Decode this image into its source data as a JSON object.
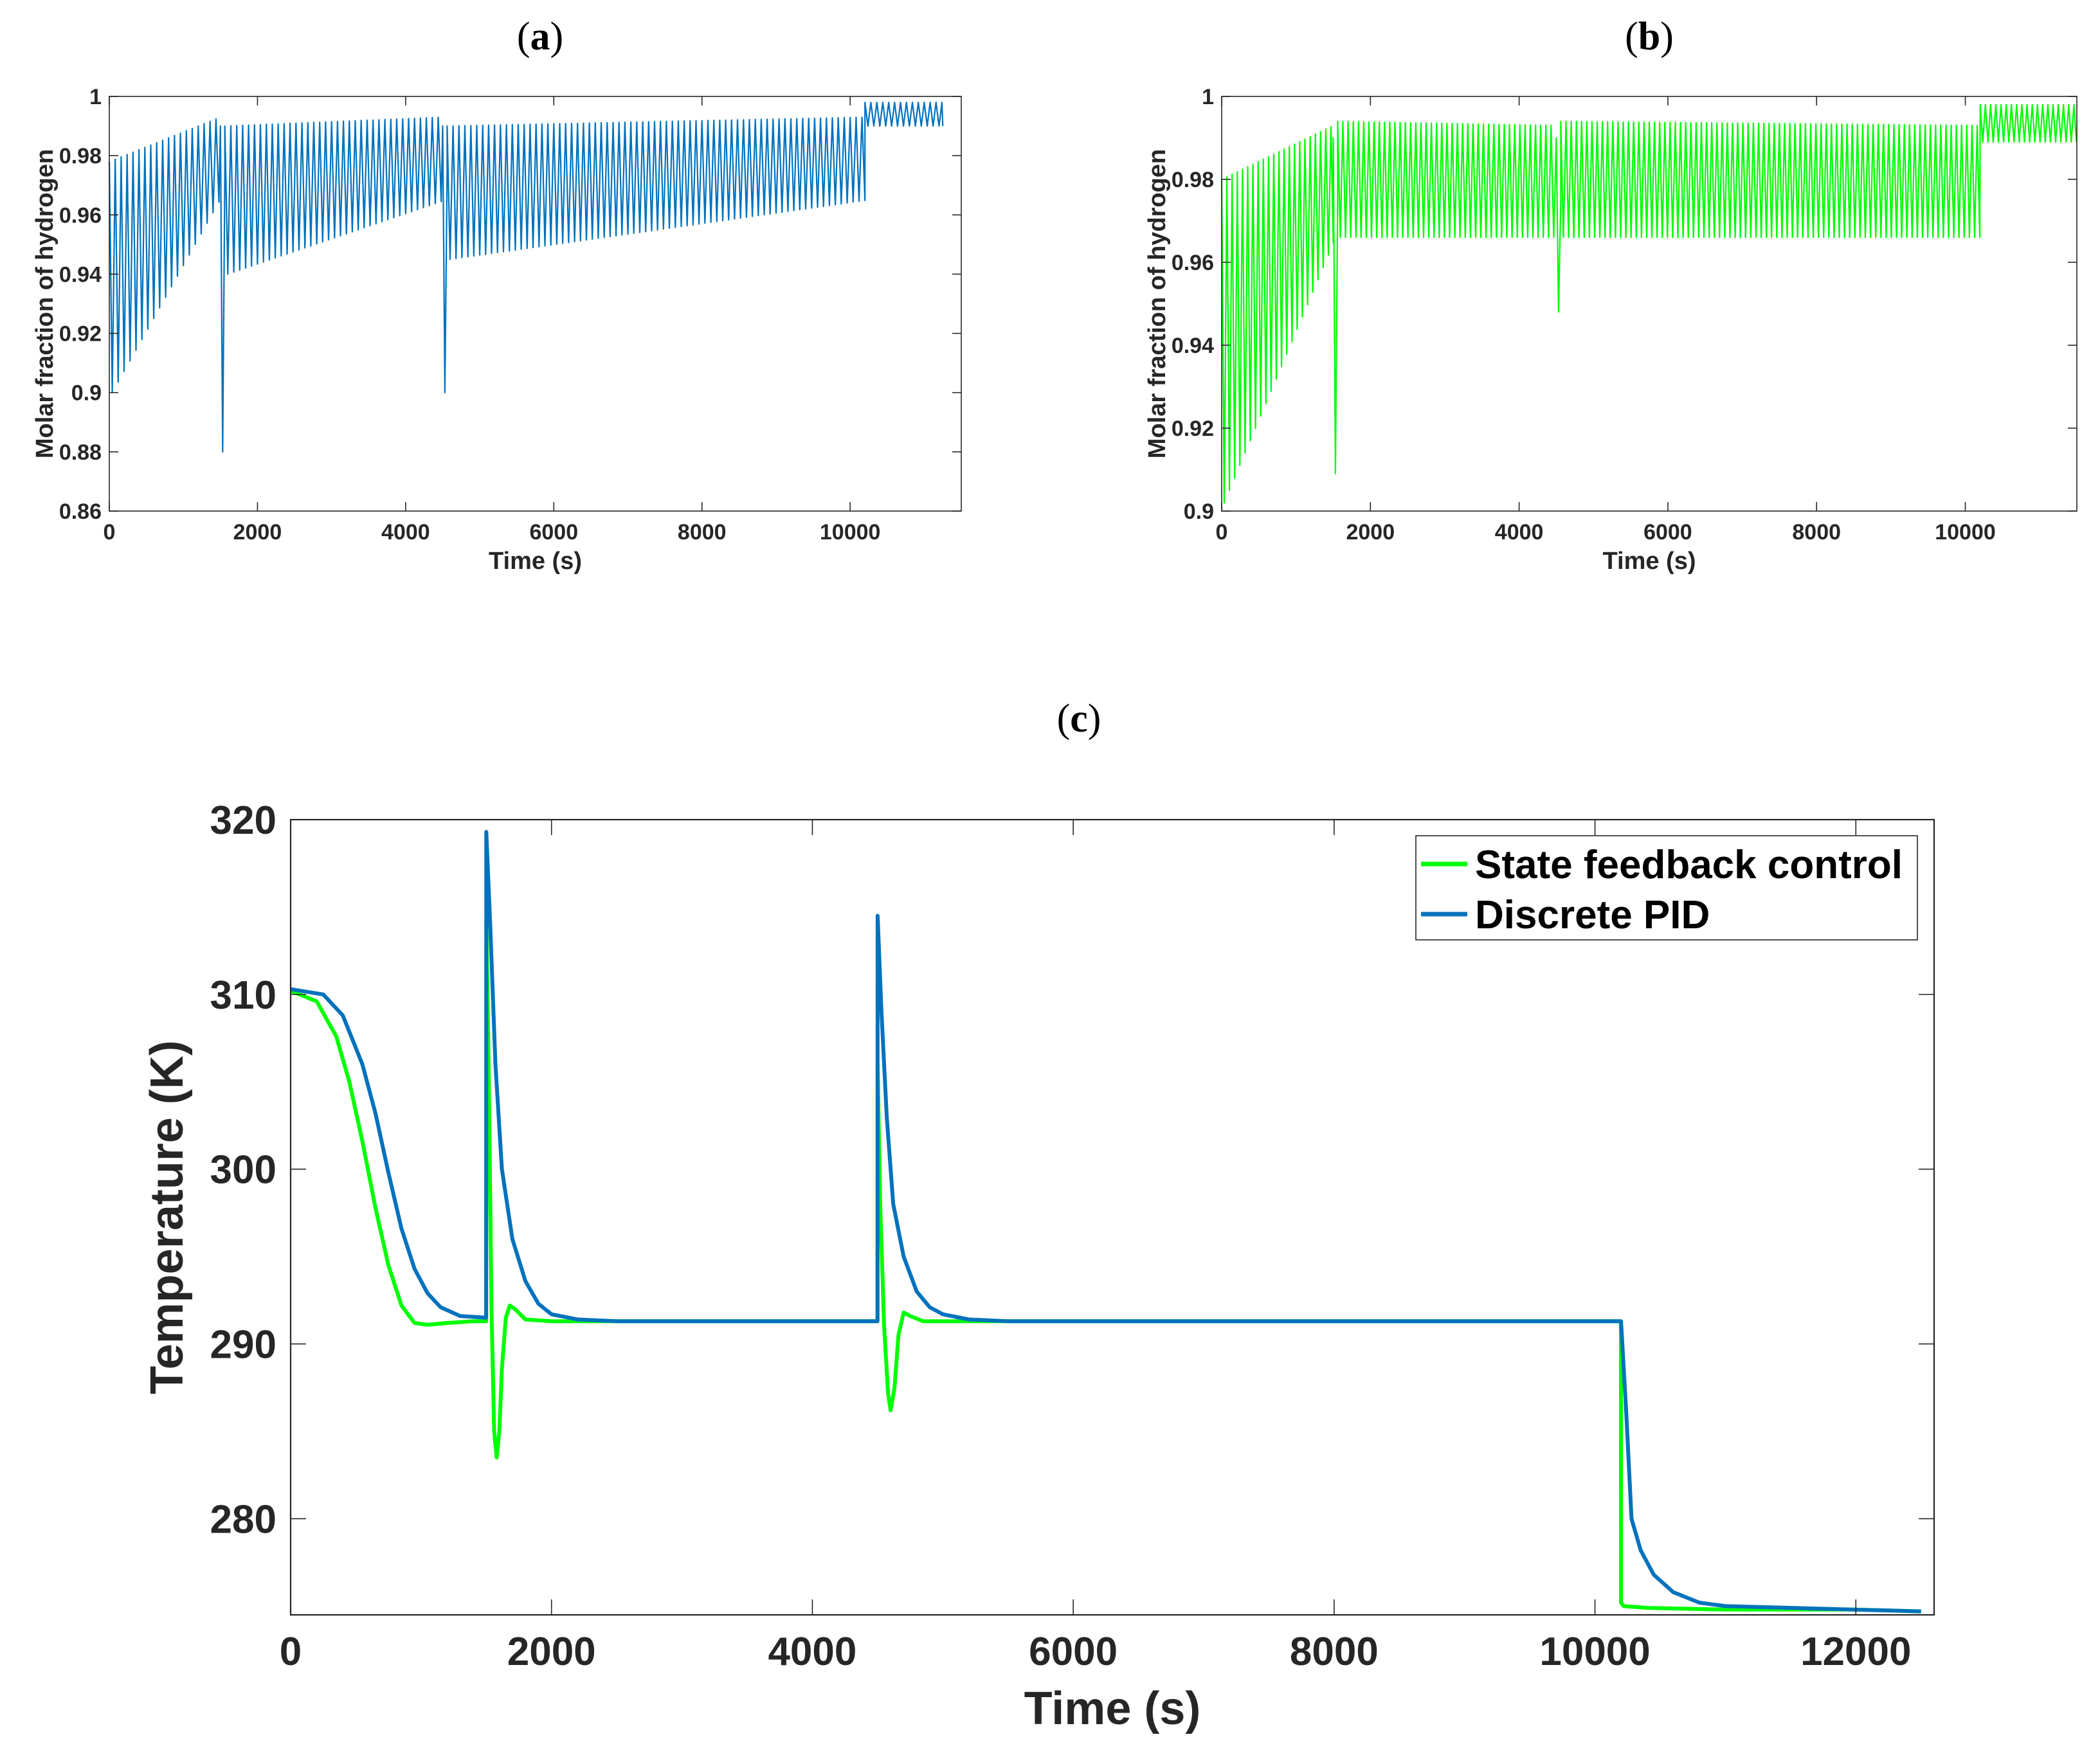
{
  "panel_labels": [
    "a",
    "b",
    "c"
  ],
  "colors": {
    "blue": "#0072BD",
    "green": "#00FF00",
    "axis": "#262626",
    "frame": "#7f7f7f"
  },
  "chart_data": [
    {
      "id": "a",
      "type": "line",
      "title": "(a)",
      "xlabel": "Time (s)",
      "ylabel": "Molar fraction of hydrogen",
      "xlim": [
        0,
        11500
      ],
      "ylim": [
        0.86,
        1.0
      ],
      "xticks": [
        0,
        2000,
        4000,
        6000,
        8000,
        10000
      ],
      "yticks": [
        0.86,
        0.88,
        0.9,
        0.92,
        0.94,
        0.96,
        0.98,
        1.0
      ],
      "xtick_labels": [
        "0",
        "2000",
        "4000",
        "6000",
        "8000",
        "10000"
      ],
      "ytick_labels": [
        "0.86",
        "0.88",
        "0.9",
        "0.92",
        "0.94",
        "0.96",
        "0.98",
        "1"
      ],
      "series": [
        {
          "name": "Discrete PID",
          "color": "#0072BD",
          "cycle_period": 80,
          "x_end": 11250,
          "segments": [
            {
              "start": 0,
              "end": 1500,
              "high_start": 0.978,
              "high_end": 0.993,
              "low_start": 0.9,
              "low_end": 0.967
            },
            {
              "start": 1500,
              "end": 1560,
              "spike_min": 0.88
            },
            {
              "start": 1560,
              "end": 4500,
              "high_start": 0.99,
              "high_end": 0.993,
              "low_start": 0.94,
              "low_end": 0.965
            },
            {
              "start": 4500,
              "end": 4560,
              "spike_min": 0.9
            },
            {
              "start": 4560,
              "end": 10200,
              "high_start": 0.99,
              "high_end": 0.993,
              "low_start": 0.945,
              "low_end": 0.965
            },
            {
              "start": 10200,
              "end": 11250,
              "high_start": 0.998,
              "high_end": 0.998,
              "low_start": 0.99,
              "low_end": 0.99
            }
          ]
        }
      ]
    },
    {
      "id": "b",
      "type": "line",
      "title": "(b)",
      "xlabel": "Time (s)",
      "ylabel": "Molar fraction of hydrogen",
      "xlim": [
        0,
        11500
      ],
      "ylim": [
        0.9,
        1.0
      ],
      "xticks": [
        0,
        2000,
        4000,
        6000,
        8000,
        10000
      ],
      "yticks": [
        0.9,
        0.92,
        0.94,
        0.96,
        0.98,
        1.0
      ],
      "xtick_labels": [
        "0",
        "2000",
        "4000",
        "6000",
        "8000",
        "10000"
      ],
      "ytick_labels": [
        "0.9",
        "0.92",
        "0.94",
        "0.96",
        "0.98",
        "1"
      ],
      "series": [
        {
          "name": "State feedback control",
          "color": "#00FF00",
          "cycle_period": 70,
          "x_end": 11500,
          "segments": [
            {
              "start": 0,
              "end": 1500,
              "high_start": 0.98,
              "high_end": 0.993,
              "low_start": 0.902,
              "low_end": 0.966
            },
            {
              "start": 1500,
              "end": 1560,
              "spike_min": 0.909
            },
            {
              "start": 1560,
              "end": 4500,
              "high_start": 0.994,
              "high_end": 0.993,
              "low_start": 0.966,
              "low_end": 0.966
            },
            {
              "start": 4500,
              "end": 4560,
              "spike_min": 0.948
            },
            {
              "start": 4560,
              "end": 10200,
              "high_start": 0.994,
              "high_end": 0.993,
              "low_start": 0.966,
              "low_end": 0.966
            },
            {
              "start": 10200,
              "end": 11500,
              "high_start": 0.998,
              "high_end": 0.998,
              "low_start": 0.989,
              "low_end": 0.989
            }
          ]
        }
      ]
    },
    {
      "id": "c",
      "type": "line",
      "title": "(c)",
      "xlabel": "Time (s)",
      "ylabel": "Temperature (K)",
      "xlim": [
        0,
        12600
      ],
      "ylim": [
        274.5,
        320
      ],
      "xticks": [
        0,
        2000,
        4000,
        6000,
        8000,
        10000,
        12000
      ],
      "yticks": [
        280,
        290,
        300,
        310,
        320
      ],
      "xtick_labels": [
        "0",
        "2000",
        "4000",
        "6000",
        "8000",
        "10000",
        "12000"
      ],
      "ytick_labels": [
        "280",
        "290",
        "300",
        "310",
        "320"
      ],
      "legend": {
        "location": "top-right",
        "entries": [
          "State feedback control",
          "Discrete PID"
        ]
      },
      "series": [
        {
          "name": "State feedback control",
          "color": "#00FF00",
          "x": [
            0,
            200,
            350,
            450,
            550,
            650,
            750,
            850,
            950,
            1050,
            1200,
            1400,
            1499,
            1500,
            1520,
            1540,
            1560,
            1580,
            1600,
            1620,
            1650,
            1680,
            1720,
            1800,
            2000,
            3000,
            4499,
            4500,
            4520,
            4550,
            4580,
            4600,
            4630,
            4660,
            4700,
            4750,
            4850,
            5200,
            7000,
            10199,
            10200,
            10220,
            10400,
            11000,
            12000,
            12500
          ],
          "y": [
            310.2,
            309.6,
            307.6,
            305.0,
            301.6,
            297.8,
            294.5,
            292.2,
            291.2,
            291.1,
            291.2,
            291.3,
            291.3,
            314.5,
            305.0,
            292.0,
            285.0,
            283.5,
            285.0,
            288.6,
            291.5,
            292.2,
            292.0,
            291.4,
            291.3,
            291.3,
            291.3,
            306.0,
            298.0,
            291.0,
            287.2,
            286.2,
            287.5,
            290.5,
            291.8,
            291.6,
            291.3,
            291.3,
            291.3,
            291.3,
            275.2,
            275.0,
            274.9,
            274.8,
            274.8,
            274.7
          ]
        },
        {
          "name": "Discrete PID",
          "color": "#0072BD",
          "x": [
            0,
            250,
            400,
            550,
            650,
            750,
            850,
            950,
            1050,
            1150,
            1300,
            1499,
            1500,
            1530,
            1570,
            1620,
            1700,
            1800,
            1900,
            2000,
            2200,
            2500,
            3000,
            4499,
            4500,
            4530,
            4570,
            4620,
            4700,
            4800,
            4900,
            5000,
            5200,
            5500,
            6000,
            10200,
            10240,
            10280,
            10350,
            10450,
            10600,
            10800,
            11000,
            11500,
            12500
          ],
          "y": [
            310.3,
            310.0,
            308.8,
            306.0,
            303.2,
            299.8,
            296.6,
            294.3,
            292.9,
            292.1,
            291.6,
            291.5,
            319.3,
            314.0,
            306.0,
            300.0,
            296.0,
            293.6,
            292.3,
            291.7,
            291.4,
            291.3,
            291.3,
            291.3,
            314.5,
            309.0,
            303.0,
            298.0,
            295.0,
            293.0,
            292.1,
            291.7,
            291.4,
            291.3,
            291.3,
            291.3,
            286.0,
            280.0,
            278.2,
            276.8,
            275.8,
            275.2,
            275.0,
            274.9,
            274.7
          ]
        }
      ]
    }
  ]
}
